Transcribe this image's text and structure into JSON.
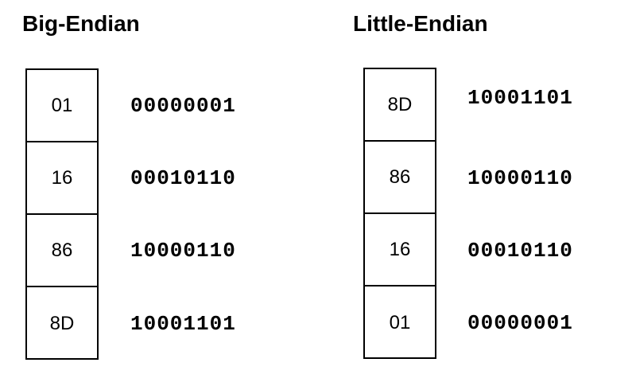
{
  "big_endian": {
    "title": "Big-Endian",
    "bytes": [
      {
        "hex": "01",
        "binary": "00000001"
      },
      {
        "hex": "16",
        "binary": "00010110"
      },
      {
        "hex": "86",
        "binary": "10000110"
      },
      {
        "hex": "8D",
        "binary": "10001101"
      }
    ]
  },
  "little_endian": {
    "title": "Little-Endian",
    "bytes": [
      {
        "hex": "8D",
        "binary": "10001101"
      },
      {
        "hex": "86",
        "binary": "10000110"
      },
      {
        "hex": "16",
        "binary": "00010110"
      },
      {
        "hex": "01",
        "binary": "00000001"
      }
    ]
  }
}
